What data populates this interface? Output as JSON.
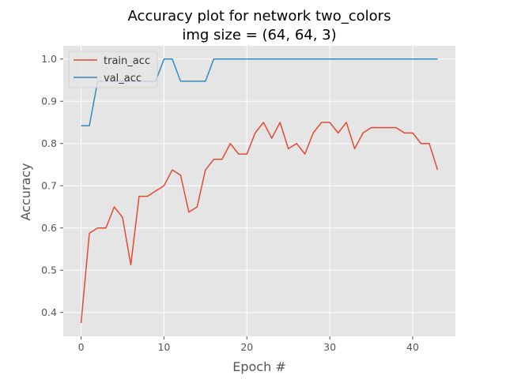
{
  "chart_data": {
    "type": "line",
    "title": "Accuracy plot for network two_colors",
    "subtitle": "img size = (64, 64, 3)",
    "xlabel": "Epoch #",
    "ylabel": "Accuracy",
    "xlim": [
      -2.15,
      45.15
    ],
    "ylim": [
      0.3434,
      1.0313
    ],
    "xticks": [
      0,
      10,
      20,
      30,
      40
    ],
    "yticks": [
      0.4,
      0.5,
      0.6,
      0.7,
      0.8,
      0.9,
      1.0
    ],
    "xtick_labels": [
      "0",
      "10",
      "20",
      "30",
      "40"
    ],
    "ytick_labels": [
      "0.4",
      "0.5",
      "0.6",
      "0.7",
      "0.8",
      "0.9",
      "1.0"
    ],
    "grid": true,
    "legend_position": "top-left",
    "background_color": "#e5e5e5",
    "grid_color": "#ffffff",
    "series": [
      {
        "name": "train_acc",
        "color": "#e24a33",
        "x": [
          0,
          1,
          2,
          3,
          4,
          5,
          6,
          7,
          8,
          9,
          10,
          11,
          12,
          13,
          14,
          15,
          16,
          17,
          18,
          19,
          20,
          21,
          22,
          23,
          24,
          25,
          26,
          27,
          28,
          29,
          30,
          31,
          32,
          33,
          34,
          35,
          36,
          37,
          38,
          39,
          40,
          41,
          42,
          43
        ],
        "values": [
          0.375,
          0.5875,
          0.6,
          0.6,
          0.65,
          0.625,
          0.5125,
          0.675,
          0.675,
          0.6875,
          0.7,
          0.7375,
          0.725,
          0.6375,
          0.65,
          0.7375,
          0.7625,
          0.7625,
          0.8,
          0.775,
          0.775,
          0.825,
          0.85,
          0.8125,
          0.85,
          0.7875,
          0.8,
          0.775,
          0.825,
          0.85,
          0.85,
          0.825,
          0.85,
          0.7875,
          0.825,
          0.8375,
          0.8375,
          0.8375,
          0.8375,
          0.825,
          0.825,
          0.8,
          0.8,
          0.7375
        ]
      },
      {
        "name": "val_acc",
        "color": "#348abd",
        "x": [
          0,
          1,
          2,
          3,
          4,
          5,
          6,
          7,
          8,
          9,
          10,
          11,
          12,
          13,
          14,
          15,
          16,
          17,
          18,
          19,
          20,
          21,
          22,
          23,
          24,
          25,
          26,
          27,
          28,
          29,
          30,
          31,
          32,
          33,
          34,
          35,
          36,
          37,
          38,
          39,
          40,
          41,
          42,
          43
        ],
        "values": [
          0.8421,
          0.8421,
          0.9474,
          0.9474,
          0.9474,
          0.9474,
          0.9474,
          0.9474,
          0.9474,
          0.9474,
          1.0,
          1.0,
          0.9474,
          0.9474,
          0.9474,
          0.9474,
          1.0,
          1.0,
          1.0,
          1.0,
          1.0,
          1.0,
          1.0,
          1.0,
          1.0,
          1.0,
          1.0,
          1.0,
          1.0,
          1.0,
          1.0,
          1.0,
          1.0,
          1.0,
          1.0,
          1.0,
          1.0,
          1.0,
          1.0,
          1.0,
          1.0,
          1.0,
          1.0,
          1.0
        ]
      }
    ]
  }
}
